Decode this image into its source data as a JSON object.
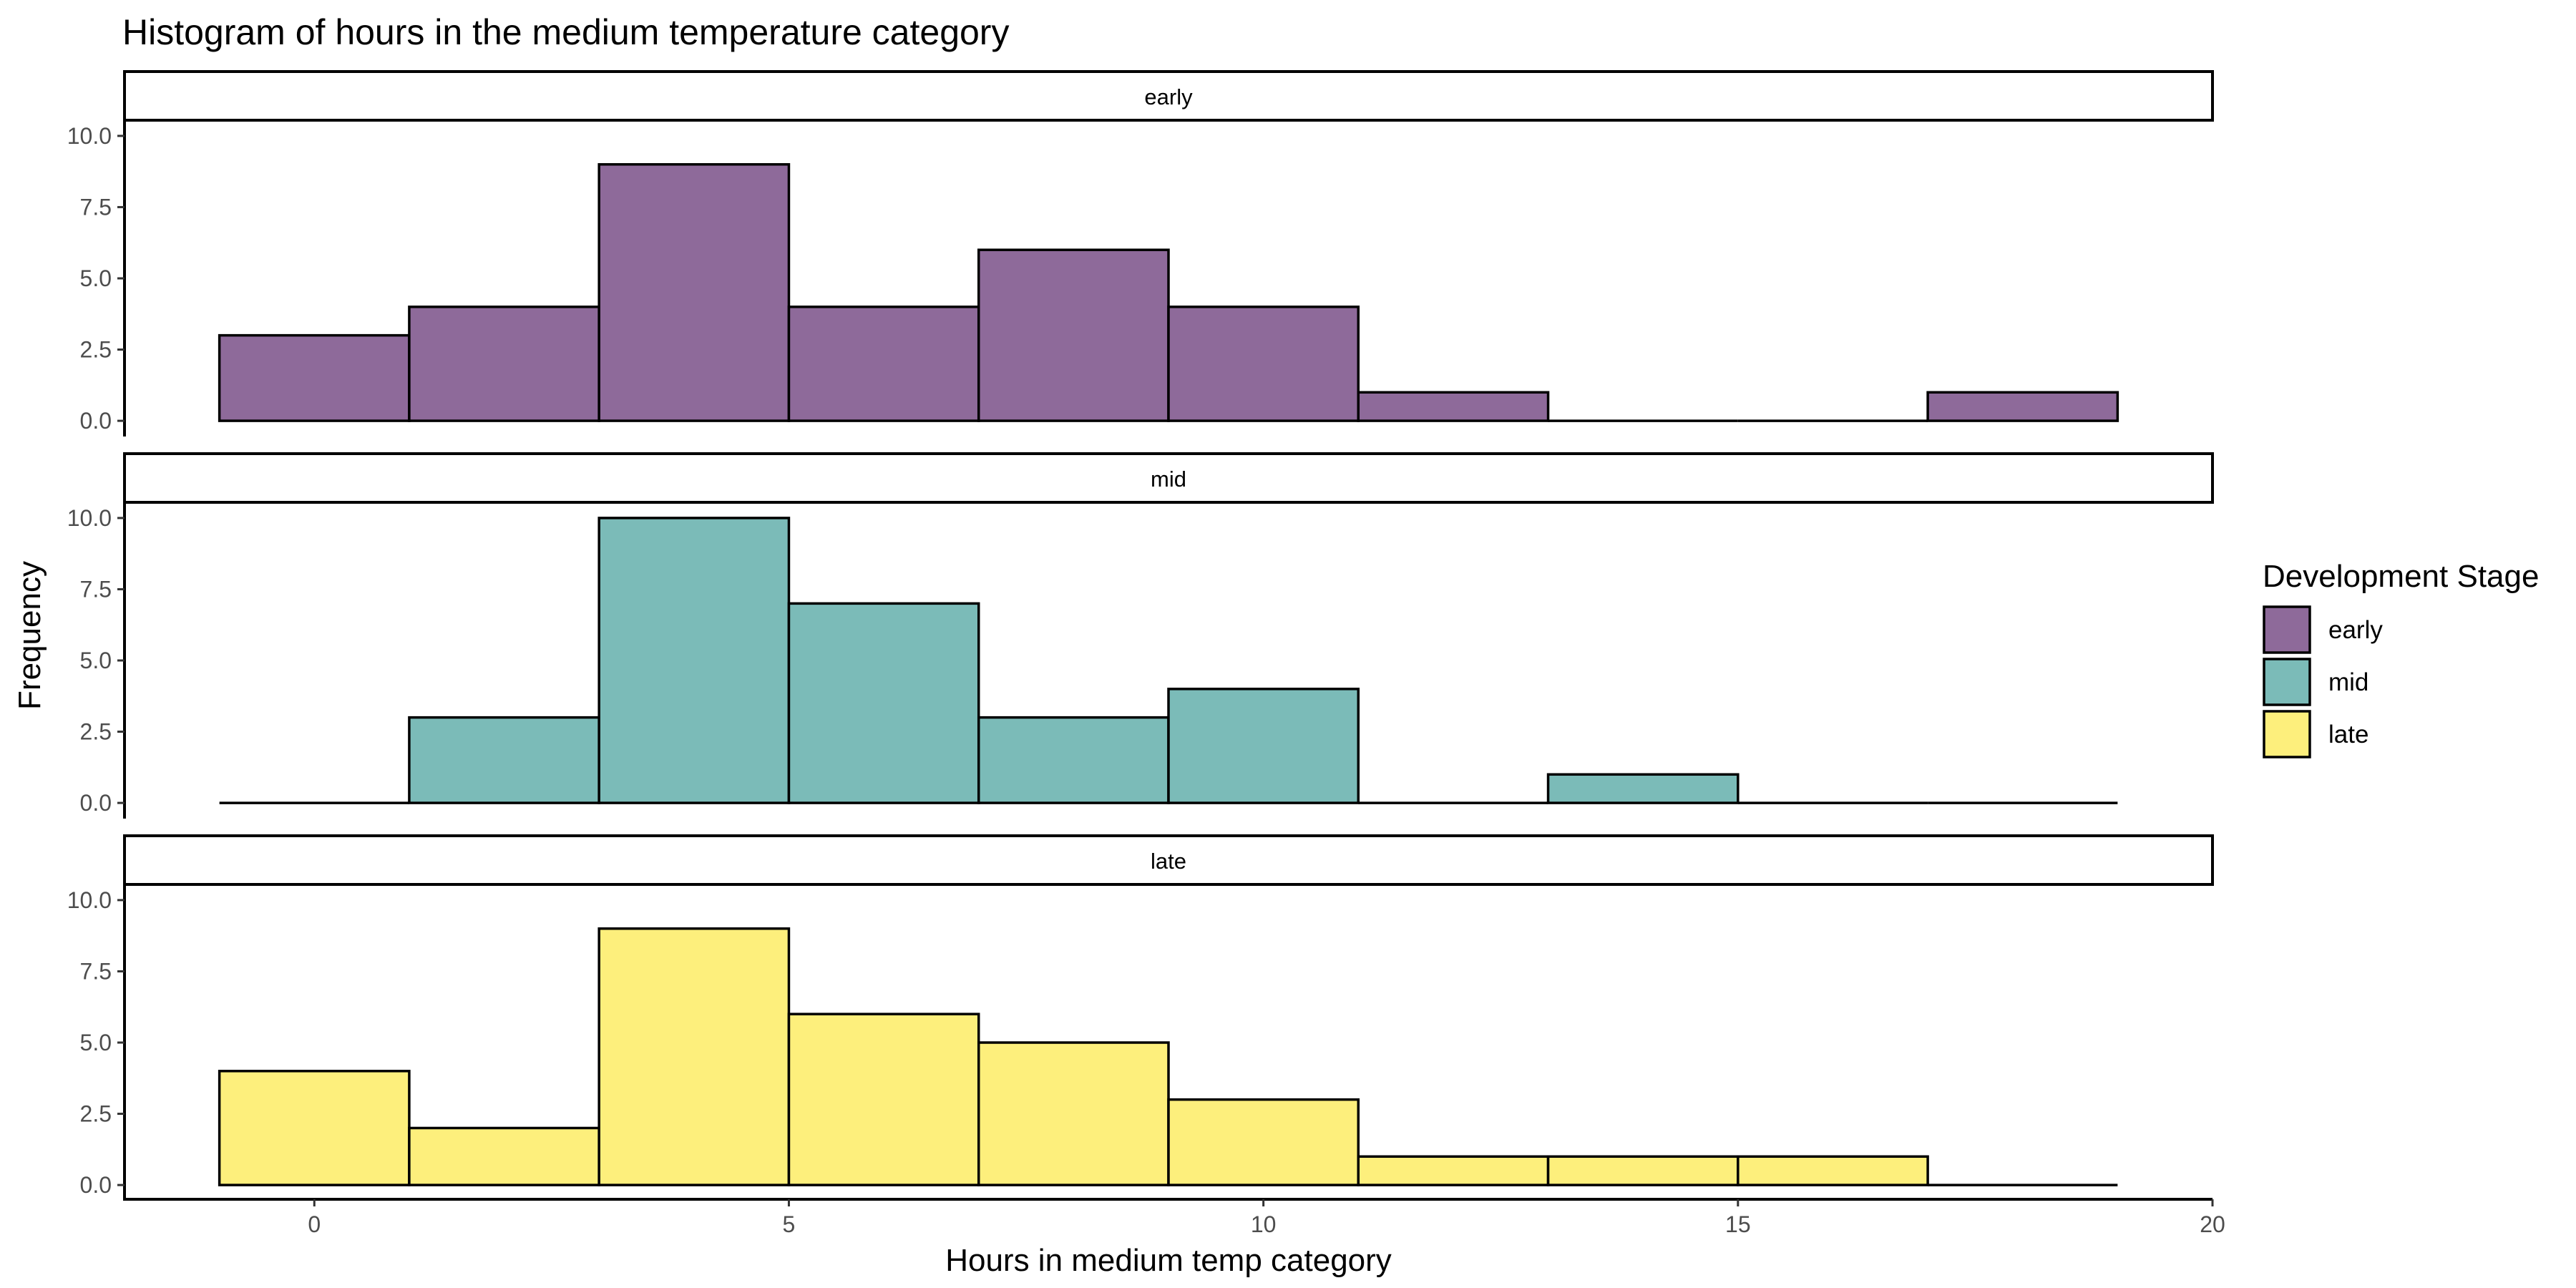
{
  "chart_data": {
    "type": "histogram",
    "title": "Histogram of hours in the medium temperature category",
    "xlabel": "Hours in medium temp category",
    "ylabel": "Frequency",
    "xlim": [
      -2,
      20
    ],
    "ylim": [
      0,
      10
    ],
    "x_ticks": [
      0,
      5,
      10,
      15,
      20
    ],
    "y_ticks": [
      "0.0",
      "2.5",
      "5.0",
      "7.5",
      "10.0"
    ],
    "bin_edges": [
      -1,
      1,
      3,
      5,
      7,
      9,
      11,
      13,
      15,
      17,
      19
    ],
    "legend": {
      "title": "Development Stage",
      "position": "right"
    },
    "facets": [
      {
        "name": "early",
        "color": "#8E6A9A",
        "counts": [
          3,
          4,
          9,
          4,
          6,
          4,
          1,
          0,
          0,
          1
        ]
      },
      {
        "name": "mid",
        "color": "#7BBBB8",
        "counts": [
          0,
          3,
          10,
          7,
          3,
          4,
          0,
          1,
          0,
          0
        ]
      },
      {
        "name": "late",
        "color": "#FDEF7C",
        "counts": [
          4,
          2,
          9,
          6,
          5,
          3,
          1,
          1,
          1,
          0
        ]
      }
    ]
  }
}
